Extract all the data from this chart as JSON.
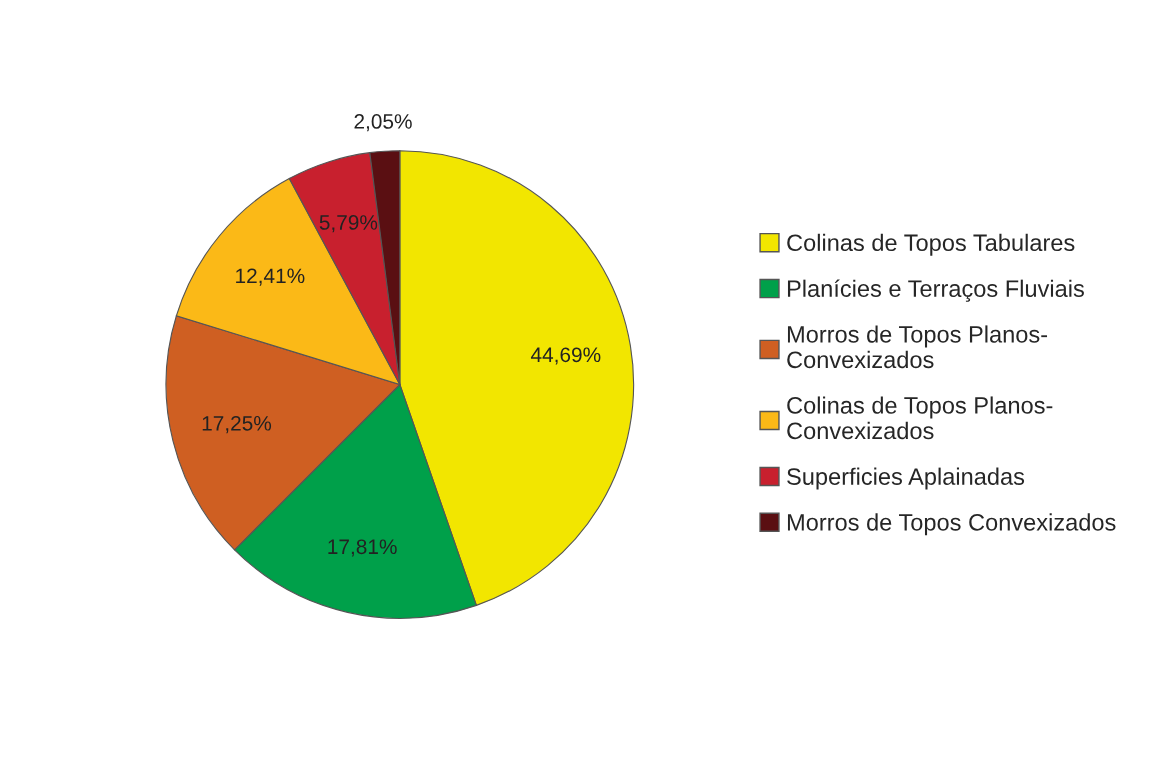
{
  "chart_data": {
    "type": "pie",
    "categories": [
      "Colinas de Topos Tabulares",
      "Planícies e Terraços Fluviais",
      "Morros de Topos Planos-\nConvexizados",
      "Colinas de Topos Planos-\nConvexizados",
      "Superficies Aplainadas",
      "Morros de Topos Convexizados"
    ],
    "values": [
      44.69,
      17.81,
      17.25,
      12.41,
      5.79,
      2.05
    ],
    "value_labels": [
      "44,69%",
      "17,81%",
      "17,25%",
      "12,41%",
      "5,79%",
      "2,05%"
    ],
    "colors": [
      "#f2e600",
      "#00a04a",
      "#cf5f22",
      "#fbb917",
      "#c8202e",
      "#5a0f12"
    ],
    "legend": "right"
  }
}
